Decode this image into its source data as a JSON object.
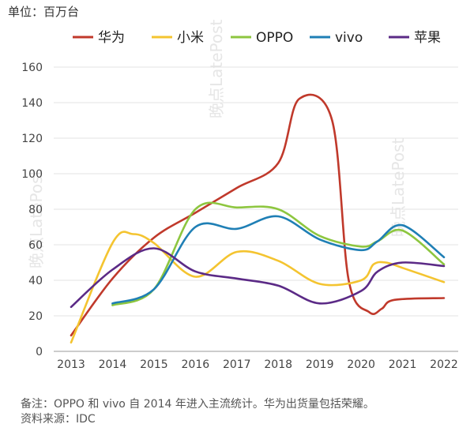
{
  "unit_label": "单位：百万台",
  "footnote": "备注：OPPO 和 vivo 自 2014 年进入主流统计。华为出货量包括荣耀。",
  "source": "资料来源：IDC",
  "chart_data": {
    "type": "line",
    "title": "",
    "xlabel": "",
    "ylabel": "",
    "ylim": [
      0,
      160
    ],
    "yticks": [
      "0",
      "20",
      "40",
      "60",
      "80",
      "100",
      "120",
      "140",
      "160"
    ],
    "categories": [
      "2013",
      "2014",
      "2015",
      "2016",
      "2017",
      "2018",
      "2019",
      "2020",
      "2021",
      "2022"
    ],
    "grid": "horizontal",
    "legend": "top",
    "series": [
      {
        "name": "华为",
        "color": "#c0392b",
        "points": [
          [
            2013,
            9
          ],
          [
            2014,
            41
          ],
          [
            2015,
            64
          ],
          [
            2016,
            78
          ],
          [
            2017,
            92
          ],
          [
            2018,
            106
          ],
          [
            2018.5,
            142
          ],
          [
            2019.3,
            130
          ],
          [
            2019.7,
            40
          ],
          [
            2020.2,
            22
          ],
          [
            2020.5,
            24
          ],
          [
            2020.8,
            29
          ],
          [
            2022,
            30
          ]
        ]
      },
      {
        "name": "小米",
        "color": "#f4c430",
        "points": [
          [
            2013,
            5
          ],
          [
            2014,
            61
          ],
          [
            2014.5,
            66
          ],
          [
            2015,
            61
          ],
          [
            2016,
            42
          ],
          [
            2017,
            56
          ],
          [
            2018,
            51
          ],
          [
            2019,
            38
          ],
          [
            2020,
            40
          ],
          [
            2020.3,
            49
          ],
          [
            2020.6,
            50
          ],
          [
            2021,
            47
          ],
          [
            2022,
            39
          ]
        ]
      },
      {
        "name": "OPPO",
        "color": "#8dc63f",
        "points": [
          [
            2014,
            26
          ],
          [
            2015,
            35
          ],
          [
            2016,
            80
          ],
          [
            2017,
            81
          ],
          [
            2018,
            80
          ],
          [
            2019,
            65
          ],
          [
            2020,
            59
          ],
          [
            2020.4,
            62
          ],
          [
            2021,
            68
          ],
          [
            2022,
            49
          ]
        ]
      },
      {
        "name": "vivo",
        "color": "#1f7fb5",
        "points": [
          [
            2014,
            27
          ],
          [
            2015,
            35
          ],
          [
            2016,
            70
          ],
          [
            2017,
            69
          ],
          [
            2018,
            76
          ],
          [
            2019,
            63
          ],
          [
            2020,
            57
          ],
          [
            2020.4,
            62
          ],
          [
            2021,
            71
          ],
          [
            2022,
            53
          ]
        ]
      },
      {
        "name": "苹果",
        "color": "#5b2a86",
        "points": [
          [
            2013,
            25
          ],
          [
            2014,
            46
          ],
          [
            2015,
            58
          ],
          [
            2016,
            45
          ],
          [
            2017,
            41
          ],
          [
            2018,
            37
          ],
          [
            2019,
            27
          ],
          [
            2020,
            34
          ],
          [
            2020.4,
            45
          ],
          [
            2021,
            50
          ],
          [
            2022,
            48
          ]
        ]
      }
    ]
  }
}
